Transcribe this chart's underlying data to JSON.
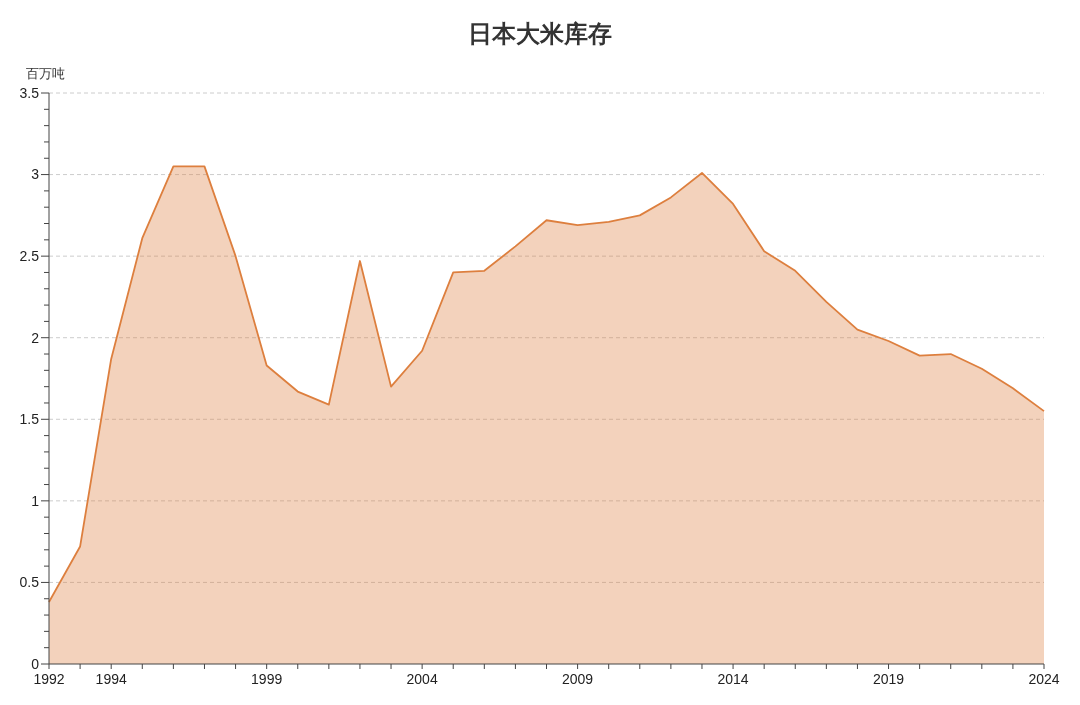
{
  "chart_data": {
    "type": "area",
    "title": "日本大米库存",
    "ylabel": "百万吨",
    "x": [
      1992,
      1993,
      1994,
      1995,
      1996,
      1997,
      1998,
      1999,
      2000,
      2001,
      2002,
      2003,
      2004,
      2005,
      2006,
      2007,
      2008,
      2009,
      2010,
      2011,
      2012,
      2013,
      2014,
      2015,
      2016,
      2017,
      2018,
      2019,
      2020,
      2021,
      2022,
      2023,
      2024
    ],
    "series": [
      {
        "color": "#dd7f3e",
        "values": [
          0.38,
          0.72,
          1.87,
          2.61,
          3.05,
          3.05,
          2.5,
          1.83,
          1.67,
          1.59,
          2.47,
          1.7,
          1.92,
          2.4,
          2.41,
          2.56,
          2.72,
          2.69,
          2.71,
          2.75,
          2.86,
          3.01,
          2.82,
          2.53,
          2.41,
          2.22,
          2.05,
          1.98,
          1.89,
          1.9,
          1.81,
          1.69,
          1.55
        ]
      }
    ],
    "xlim": [
      1992,
      2024
    ],
    "xticks": [
      1992,
      {
        "value": 1993,
        "label": null
      },
      1994,
      {
        "value": 1995,
        "label": null
      },
      {
        "value": 1996,
        "label": null
      },
      {
        "value": 1997,
        "label": null
      },
      {
        "value": 1998,
        "label": null
      },
      1999,
      {
        "value": 2000,
        "label": null
      },
      {
        "value": 2001,
        "label": null
      },
      {
        "value": 2002,
        "label": null
      },
      {
        "value": 2003,
        "label": null
      },
      2004,
      {
        "value": 2005,
        "label": null
      },
      {
        "value": 2006,
        "label": null
      },
      {
        "value": 2007,
        "label": null
      },
      {
        "value": 2008,
        "label": null
      },
      2009,
      {
        "value": 2010,
        "label": null
      },
      {
        "value": 2011,
        "label": null
      },
      {
        "value": 2012,
        "label": null
      },
      {
        "value": 2013,
        "label": null
      },
      2014,
      {
        "value": 2015,
        "label": null
      },
      {
        "value": 2016,
        "label": null
      },
      {
        "value": 2017,
        "label": null
      },
      {
        "value": 2018,
        "label": null
      },
      2019,
      {
        "value": 2020,
        "label": null
      },
      {
        "value": 2021,
        "label": null
      },
      {
        "value": 2022,
        "label": null
      },
      {
        "value": 2023,
        "label": null
      },
      2024
    ],
    "ylim": [
      0,
      3.5
    ],
    "yticks": [
      0,
      {
        "value": 0.1,
        "label": null
      },
      {
        "value": 0.2,
        "label": null
      },
      {
        "value": 0.3,
        "label": null
      },
      {
        "value": 0.4,
        "label": null
      },
      0.5,
      {
        "value": 0.6,
        "label": null
      },
      {
        "value": 0.7,
        "label": null
      },
      {
        "value": 0.8,
        "label": null
      },
      {
        "value": 0.9,
        "label": null
      },
      1,
      {
        "value": 1.1,
        "label": null
      },
      {
        "value": 1.2,
        "label": null
      },
      {
        "value": 1.3,
        "label": null
      },
      {
        "value": 1.4,
        "label": null
      },
      1.5,
      {
        "value": 1.6,
        "label": null
      },
      {
        "value": 1.7,
        "label": null
      },
      {
        "value": 1.8,
        "label": null
      },
      {
        "value": 1.9,
        "label": null
      },
      2,
      {
        "value": 2.1,
        "label": null
      },
      {
        "value": 2.2,
        "label": null
      },
      {
        "value": 2.3,
        "label": null
      },
      {
        "value": 2.4,
        "label": null
      },
      2.5,
      {
        "value": 2.6,
        "label": null
      },
      {
        "value": 2.7,
        "label": null
      },
      {
        "value": 2.8,
        "label": null
      },
      {
        "value": 2.9,
        "label": null
      },
      3,
      {
        "value": 3.1,
        "label": null
      },
      {
        "value": 3.2,
        "label": null
      },
      {
        "value": 3.3,
        "label": null
      },
      {
        "value": 3.4,
        "label": null
      },
      3.5
    ],
    "grid": "y"
  }
}
